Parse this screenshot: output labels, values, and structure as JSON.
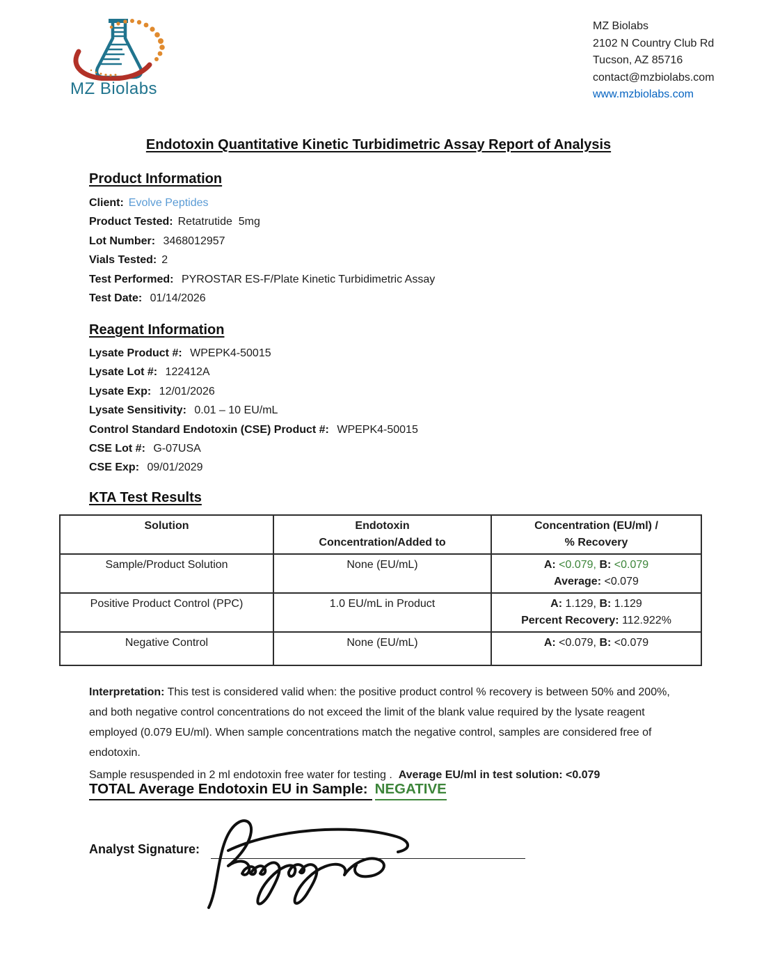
{
  "logo": {
    "brand": "MZ Biolabs"
  },
  "letterhead": {
    "lines": [
      "MZ Biolabs",
      "2102 N Country Club Rd",
      "Tucson, AZ 85716",
      "contact@mzbiolabs.com"
    ],
    "website": "www.mzbiolabs.com"
  },
  "title": "Endotoxin Quantitative Kinetic Turbidimetric Assay Report of Analysis",
  "product_info": {
    "heading": "Product Information",
    "fields": [
      {
        "label": "Client:",
        "value": "Evolve Peptides",
        "color": "blue"
      },
      {
        "label": "Product Tested:",
        "value": "Retatrutide  5mg"
      },
      {
        "label": "Lot Number:",
        "value": " 3468012957"
      },
      {
        "label": "Vials Tested:",
        "value": "2"
      },
      {
        "label": "Test Performed:",
        "value": " PYROSTAR ES-F/Plate Kinetic Turbidimetric Assay"
      },
      {
        "label": "Test Date:",
        "value": " 01/14/2026"
      }
    ]
  },
  "reagent_info": {
    "heading": "Reagent Information",
    "fields": [
      {
        "label": "Lysate Product #:",
        "value": " WPEPK4-50015"
      },
      {
        "label": "Lysate Lot #:",
        "value": " 122412A"
      },
      {
        "label": "Lysate Exp:",
        "value": " 12/01/2026"
      },
      {
        "label": "Lysate Sensitivity:",
        "value": " 0.01 – 10 EU/mL"
      },
      {
        "label": "Control Standard Endotoxin (CSE) Product #:",
        "value": " WPEPK4-50015"
      },
      {
        "label": "CSE Lot #:",
        "value": " G-07USA"
      },
      {
        "label": "CSE Exp:",
        "value": " 09/01/2029"
      }
    ]
  },
  "kta": {
    "heading": "KTA Test Results",
    "table": {
      "headers": [
        [
          "Solution"
        ],
        [
          "Endotoxin",
          "Concentration/Added to"
        ],
        [
          "Concentration (EU/ml) /",
          "% Recovery"
        ]
      ],
      "rows": [
        {
          "solution": "Sample/Product Solution",
          "added": "None (EU/mL)",
          "result_lines": [
            [
              {
                "t": "A:",
                "b": 1
              },
              {
                "t": " "
              },
              {
                "t": "<0.079,",
                "c": "green"
              },
              {
                "t": " "
              },
              {
                "t": "B:",
                "b": 1
              },
              {
                "t": " "
              },
              {
                "t": "<0.079",
                "c": "green"
              }
            ],
            [
              {
                "t": "Average:",
                "b": 1
              },
              {
                "t": " <0.079"
              }
            ]
          ]
        },
        {
          "solution": "Positive Product Control (PPC)",
          "added": "1.0 EU/mL in Product",
          "result_lines": [
            [
              {
                "t": "A:",
                "b": 1
              },
              {
                "t": " 1.129, "
              },
              {
                "t": "B:",
                "b": 1
              },
              {
                "t": " 1.129"
              }
            ],
            [
              {
                "t": "Percent Recovery:",
                "b": 1
              },
              {
                "t": " 112.922%"
              }
            ]
          ]
        },
        {
          "solution": "Negative Control",
          "added": "None (EU/mL)",
          "result_lines": [
            [
              {
                "t": "A:",
                "b": 1
              },
              {
                "t": " <0.079, "
              },
              {
                "t": "B:",
                "b": 1
              },
              {
                "t": " <0.079"
              }
            ]
          ]
        }
      ]
    }
  },
  "interpretation": {
    "label": "Interpretation:",
    "text": " This test is considered valid when: the positive product control % recovery is between 50% and 200%, and both negative control concentrations do not exceed the limit of the blank value required by the lysate reagent employed (0.079 EU/ml). When sample concentrations match the negative control, samples are considered free of endotoxin."
  },
  "resuspension": {
    "text": "Sample resuspended in 2 ml endotoxin free water for testing .  ",
    "bold": "Average EU/ml in test solution: <0.079"
  },
  "total": {
    "label": "TOTAL Average Endotoxin EU in Sample:",
    "value": "NEGATIVE"
  },
  "signature": {
    "label": "Analyst Signature:"
  },
  "colors": {
    "green": "#3D853A",
    "blue": "#5A9BD5",
    "link_blue": "#0563C1",
    "logo_teal": "#20748E",
    "logo_red": "#B23127",
    "logo_orange": "#E08A2E"
  }
}
